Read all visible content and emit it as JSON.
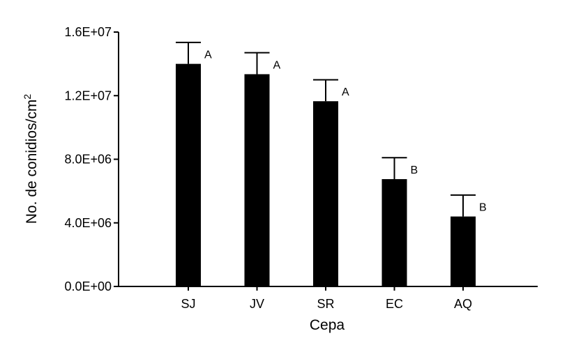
{
  "chart_data": {
    "type": "bar",
    "categories": [
      "SJ",
      "JV",
      "SR",
      "EC",
      "AQ"
    ],
    "values": [
      14000000,
      13350000,
      11650000,
      6750000,
      4400000
    ],
    "error_upper": [
      15350000,
      14700000,
      13000000,
      8100000,
      5750000
    ],
    "significance_labels": [
      "A",
      "A",
      "A",
      "B",
      "B"
    ],
    "xlabel": "Cepa",
    "ylabel_main": "No. de conidios/cm",
    "ylabel_superscript": "2",
    "ylim": [
      0,
      16000000
    ],
    "yticks": [
      0,
      4000000,
      8000000,
      12000000,
      16000000
    ],
    "ytick_labels": [
      "0.0E+00",
      "4.0E+06",
      "8.0E+06",
      "1.2E+07",
      "1.6E+07"
    ],
    "grid": false,
    "bar_color": "#000000"
  }
}
